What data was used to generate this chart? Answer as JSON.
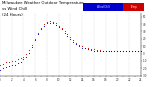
{
  "title_left": "Milwaukee Weather Outdoor Temperature",
  "title_mid": "vs Wind Chill",
  "title_right": "(24 Hours)",
  "bg_color": "#ffffff",
  "temp_color": "#cc0000",
  "windchill_color": "#0000cc",
  "grid_color": "#999999",
  "ylim": [
    -30,
    55
  ],
  "xlim": [
    0,
    288
  ],
  "legend_blue_label": "Wind Chill",
  "legend_red_label": "Temp",
  "temp_x": [
    0,
    6,
    12,
    18,
    24,
    30,
    36,
    42,
    48,
    54,
    60,
    66,
    72,
    78,
    84,
    90,
    96,
    102,
    108,
    114,
    120,
    126,
    132,
    138,
    144,
    150,
    156,
    162,
    168,
    174,
    180,
    186,
    192,
    198,
    204,
    210,
    216,
    222,
    228,
    234,
    240,
    246,
    252,
    258,
    264,
    270,
    276,
    282,
    288
  ],
  "temp_y": [
    -15,
    -14,
    -12,
    -11,
    -10,
    -10,
    -8,
    -6,
    -4,
    -1,
    5,
    12,
    20,
    28,
    35,
    40,
    43,
    44,
    43,
    41,
    38,
    35,
    30,
    26,
    22,
    18,
    15,
    12,
    10,
    8,
    7,
    6,
    6,
    5,
    5,
    4,
    4,
    3,
    3,
    3,
    3,
    3,
    3,
    3,
    3,
    3,
    3,
    3,
    3
  ],
  "wc_x": [
    0,
    6,
    12,
    18,
    24,
    30,
    36,
    42,
    48,
    54,
    60,
    66,
    72,
    78,
    84,
    90,
    96,
    102,
    108,
    114,
    120,
    126,
    132,
    138,
    144,
    150,
    156,
    162,
    168,
    174,
    180,
    186,
    192,
    198,
    204,
    210,
    216,
    222,
    228,
    234,
    240,
    246,
    252,
    258,
    264,
    270,
    276,
    282,
    288
  ],
  "wc_y": [
    -22,
    -20,
    -18,
    -17,
    -16,
    -15,
    -13,
    -11,
    -8,
    -4,
    1,
    9,
    18,
    26,
    33,
    38,
    41,
    42,
    41,
    39,
    36,
    33,
    28,
    24,
    20,
    16,
    13,
    10,
    8,
    7,
    6,
    5,
    4,
    4,
    4,
    3,
    3,
    3,
    3,
    3,
    3,
    3,
    3,
    3,
    3,
    3,
    3,
    3,
    3
  ],
  "ytick_positions": [
    -30,
    -20,
    -10,
    0,
    10,
    20,
    30,
    40,
    50
  ],
  "ytick_labels": [
    "-30",
    "-20",
    "-10",
    "0",
    "10",
    "20",
    "30",
    "40",
    "50"
  ],
  "xtick_step": 24,
  "num_xticks": 13
}
